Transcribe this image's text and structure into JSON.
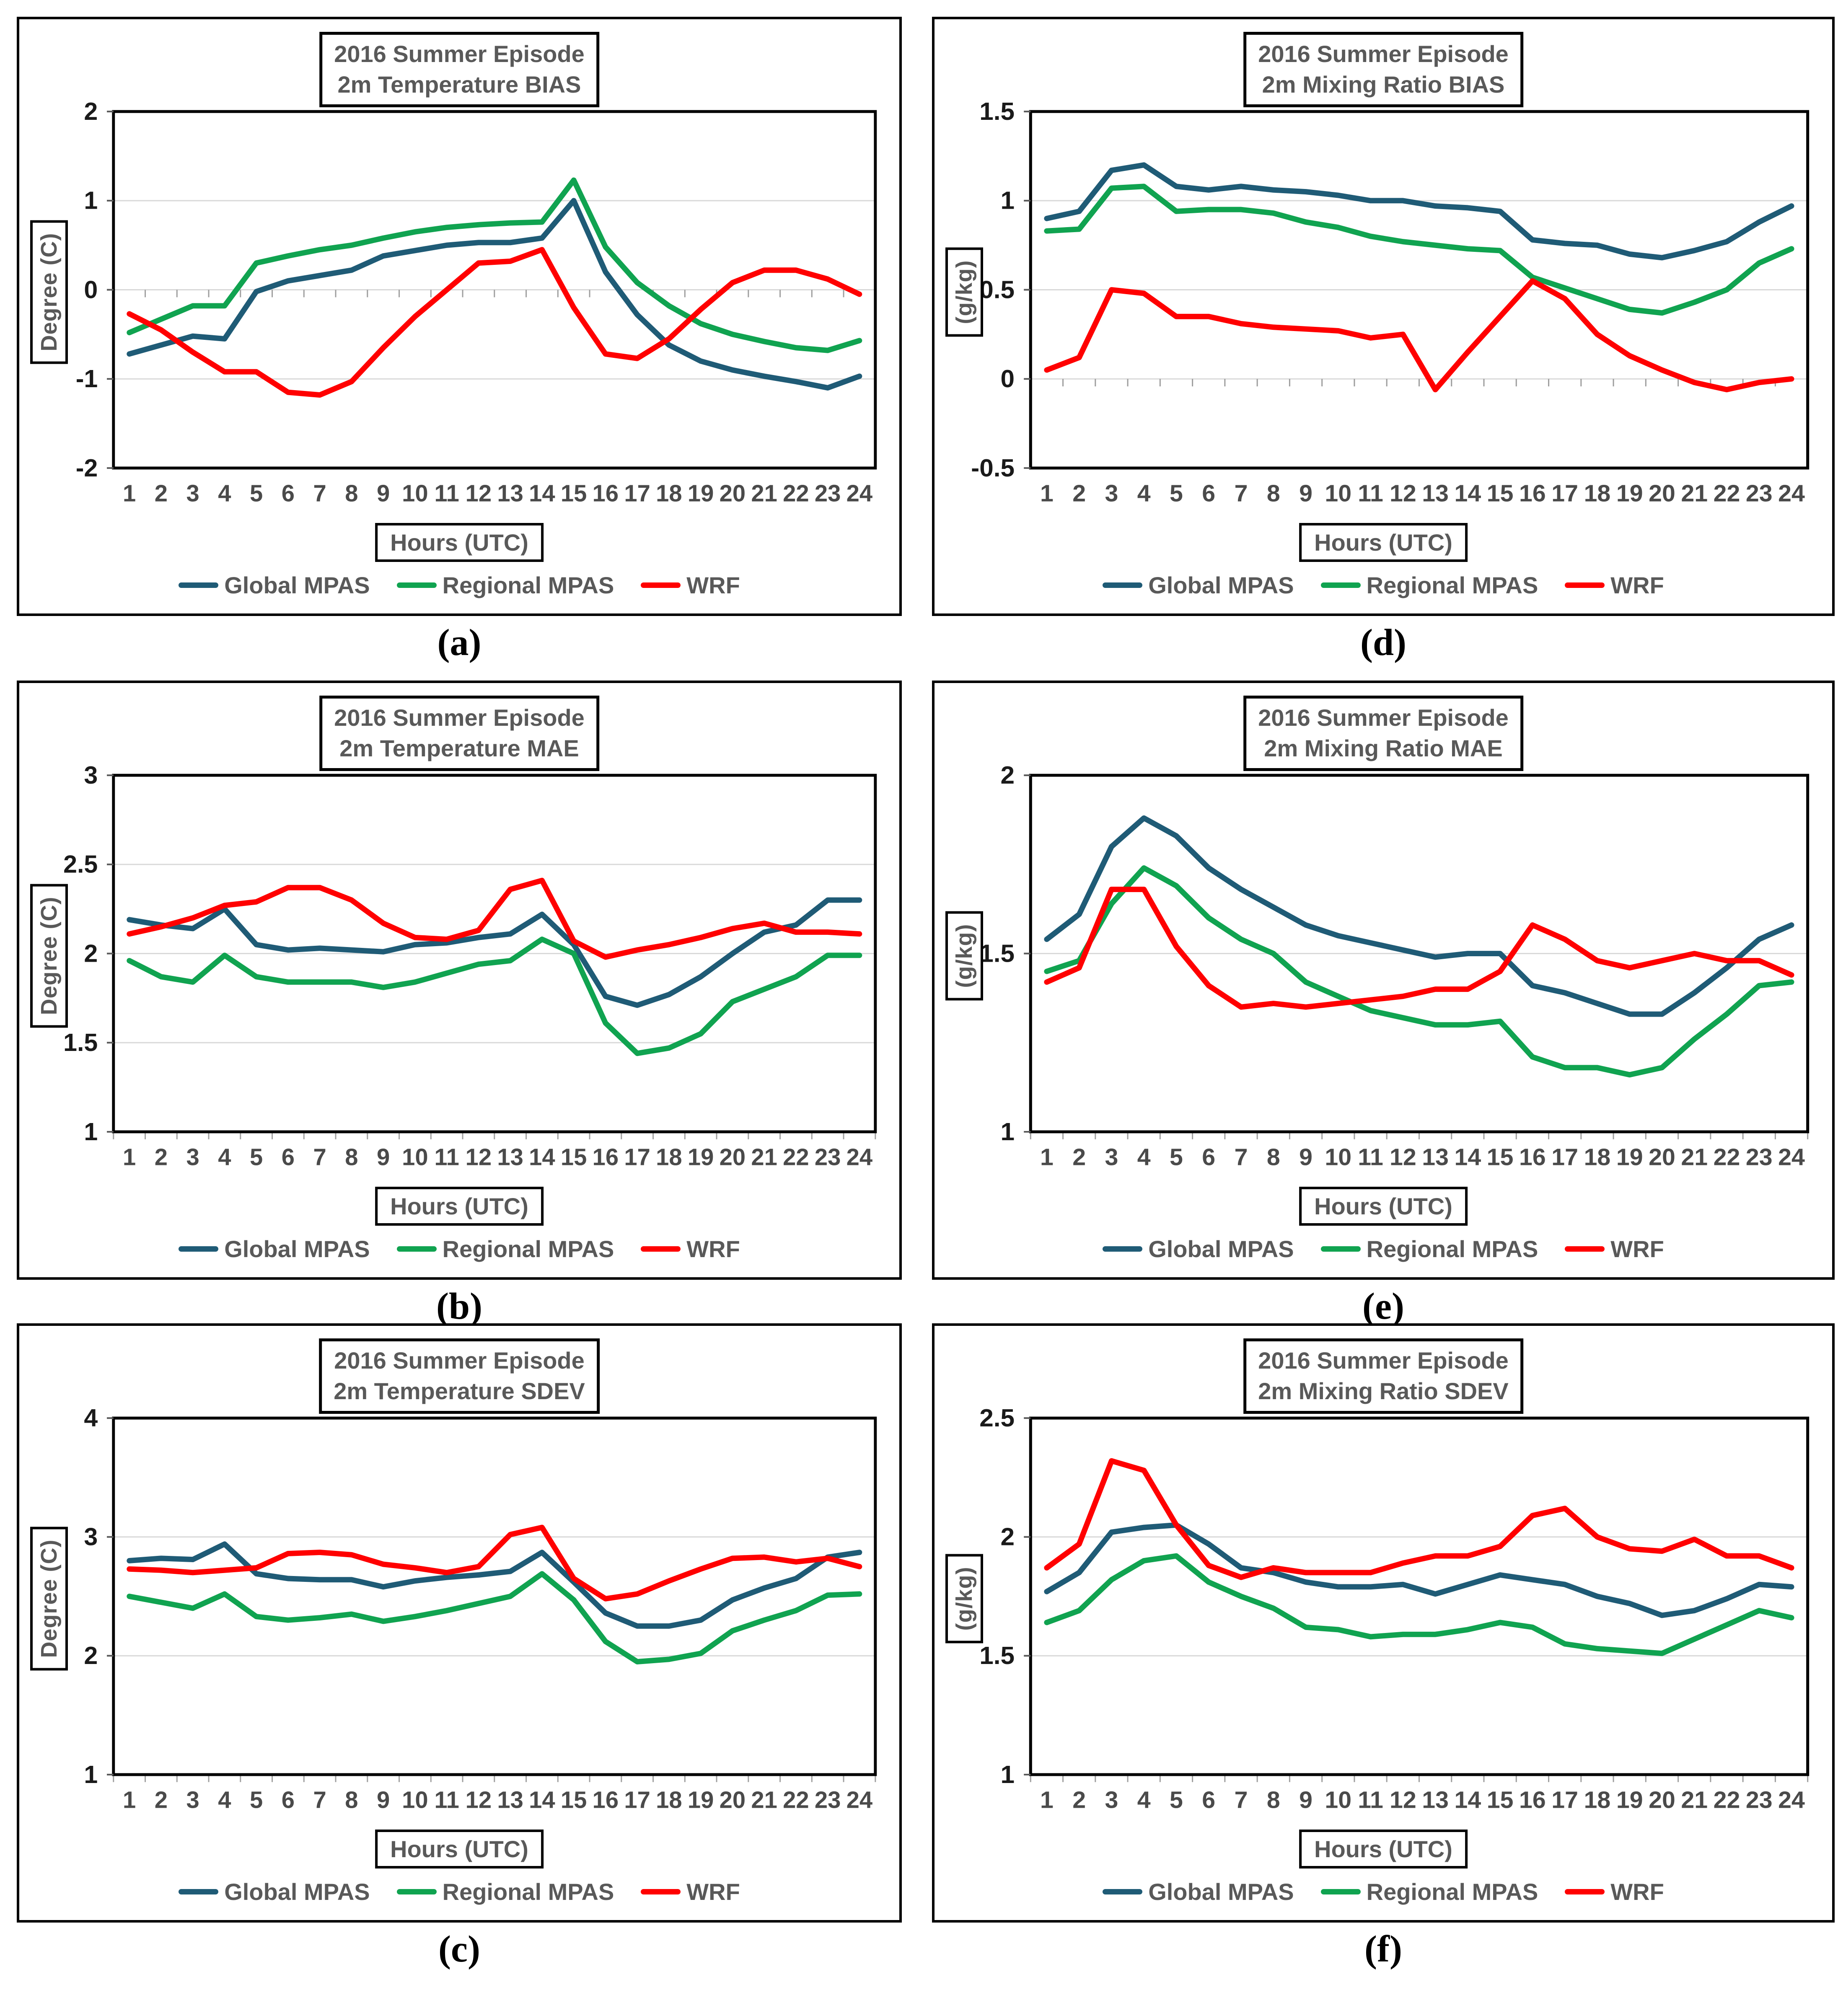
{
  "shared": {
    "x_label": "Hours (UTC)",
    "legend": [
      {
        "key": "global",
        "label": "Global MPAS"
      },
      {
        "key": "regional",
        "label": "Regional MPAS"
      },
      {
        "key": "wrf",
        "label": "WRF"
      }
    ],
    "colors": {
      "global": "#1F5B76",
      "regional": "#10A350",
      "wrf": "#FF0000",
      "grid": "#D9D9D9",
      "frame": "#000000",
      "title_text": "#595959",
      "x_tick_text": "#4A4A4A",
      "y_tick_text": "#1A1A1A"
    }
  },
  "chart_data": [
    {
      "id": "a",
      "panel_label": "(a)",
      "type": "line",
      "title_line1": "2016 Summer Episode",
      "title_line2": "2m Temperature BIAS",
      "ylabel": "Degree (C)",
      "xlabel": "Hours (UTC)",
      "ylim": [
        -2,
        2
      ],
      "x_axis_at": 0,
      "yticks": [
        {
          "v": 2,
          "t": "2"
        },
        {
          "v": 1,
          "t": "1"
        },
        {
          "v": 0,
          "t": "0"
        },
        {
          "v": -1,
          "t": "-1"
        },
        {
          "v": -2,
          "t": "-2"
        }
      ],
      "x": [
        1,
        2,
        3,
        4,
        5,
        6,
        7,
        8,
        9,
        10,
        11,
        12,
        13,
        14,
        15,
        16,
        17,
        18,
        19,
        20,
        21,
        22,
        23,
        24
      ],
      "series": [
        {
          "name": "Global MPAS",
          "key": "global",
          "values": [
            -0.72,
            -0.62,
            -0.52,
            -0.55,
            -0.02,
            0.1,
            0.16,
            0.22,
            0.38,
            0.44,
            0.5,
            0.53,
            0.53,
            0.58,
            1.0,
            0.2,
            -0.28,
            -0.62,
            -0.8,
            -0.9,
            -0.97,
            -1.03,
            -1.1,
            -0.97
          ]
        },
        {
          "name": "Regional MPAS",
          "key": "regional",
          "values": [
            -0.48,
            -0.33,
            -0.18,
            -0.18,
            0.3,
            0.38,
            0.45,
            0.5,
            0.58,
            0.65,
            0.7,
            0.73,
            0.75,
            0.76,
            1.23,
            0.48,
            0.08,
            -0.18,
            -0.38,
            -0.5,
            -0.58,
            -0.65,
            -0.68,
            -0.57
          ]
        },
        {
          "name": "WRF",
          "key": "wrf",
          "values": [
            -0.27,
            -0.45,
            -0.7,
            -0.92,
            -0.92,
            -1.15,
            -1.18,
            -1.03,
            -0.65,
            -0.3,
            0.0,
            0.3,
            0.32,
            0.45,
            -0.2,
            -0.72,
            -0.77,
            -0.55,
            -0.22,
            0.08,
            0.22,
            0.22,
            0.12,
            -0.05
          ]
        }
      ]
    },
    {
      "id": "b",
      "panel_label": "(b)",
      "type": "line",
      "title_line1": "2016 Summer Episode",
      "title_line2": "2m Temperature MAE",
      "ylabel": "Degree (C)",
      "xlabel": "Hours (UTC)",
      "ylim": [
        1,
        3
      ],
      "x_axis_at": 1,
      "yticks": [
        {
          "v": 3,
          "t": "3"
        },
        {
          "v": 2.5,
          "t": "2.5"
        },
        {
          "v": 2,
          "t": "2"
        },
        {
          "v": 1.5,
          "t": "1.5"
        },
        {
          "v": 1,
          "t": "1"
        }
      ],
      "x": [
        1,
        2,
        3,
        4,
        5,
        6,
        7,
        8,
        9,
        10,
        11,
        12,
        13,
        14,
        15,
        16,
        17,
        18,
        19,
        20,
        21,
        22,
        23,
        24
      ],
      "series": [
        {
          "name": "Global MPAS",
          "key": "global",
          "values": [
            2.19,
            2.16,
            2.14,
            2.25,
            2.05,
            2.02,
            2.03,
            2.02,
            2.01,
            2.05,
            2.06,
            2.09,
            2.11,
            2.22,
            2.05,
            1.76,
            1.71,
            1.77,
            1.87,
            2.0,
            2.12,
            2.16,
            2.3,
            2.3
          ]
        },
        {
          "name": "Regional MPAS",
          "key": "regional",
          "values": [
            1.96,
            1.87,
            1.84,
            1.99,
            1.87,
            1.84,
            1.84,
            1.84,
            1.81,
            1.84,
            1.89,
            1.94,
            1.96,
            2.08,
            2.0,
            1.61,
            1.44,
            1.47,
            1.55,
            1.73,
            1.8,
            1.87,
            1.99,
            1.99
          ]
        },
        {
          "name": "WRF",
          "key": "wrf",
          "values": [
            2.11,
            2.15,
            2.2,
            2.27,
            2.29,
            2.37,
            2.37,
            2.3,
            2.17,
            2.09,
            2.08,
            2.13,
            2.36,
            2.41,
            2.07,
            1.98,
            2.02,
            2.05,
            2.09,
            2.14,
            2.17,
            2.12,
            2.12,
            2.11
          ]
        }
      ]
    },
    {
      "id": "c",
      "panel_label": "(c)",
      "type": "line",
      "title_line1": "2016 Summer Episode",
      "title_line2": "2m Temperature SDEV",
      "ylabel": "Degree (C)",
      "xlabel": "Hours (UTC)",
      "ylim": [
        1,
        4
      ],
      "x_axis_at": 1,
      "yticks": [
        {
          "v": 4,
          "t": "4"
        },
        {
          "v": 3,
          "t": "3"
        },
        {
          "v": 2,
          "t": "2"
        },
        {
          "v": 1,
          "t": "1"
        }
      ],
      "x": [
        1,
        2,
        3,
        4,
        5,
        6,
        7,
        8,
        9,
        10,
        11,
        12,
        13,
        14,
        15,
        16,
        17,
        18,
        19,
        20,
        21,
        22,
        23,
        24
      ],
      "series": [
        {
          "name": "Global MPAS",
          "key": "global",
          "values": [
            2.8,
            2.82,
            2.81,
            2.94,
            2.69,
            2.65,
            2.64,
            2.64,
            2.58,
            2.63,
            2.66,
            2.68,
            2.71,
            2.87,
            2.62,
            2.36,
            2.25,
            2.25,
            2.3,
            2.47,
            2.57,
            2.65,
            2.83,
            2.87
          ]
        },
        {
          "name": "Regional MPAS",
          "key": "regional",
          "values": [
            2.5,
            2.45,
            2.4,
            2.52,
            2.33,
            2.3,
            2.32,
            2.35,
            2.29,
            2.33,
            2.38,
            2.44,
            2.5,
            2.69,
            2.47,
            2.12,
            1.95,
            1.97,
            2.02,
            2.21,
            2.3,
            2.38,
            2.51,
            2.52
          ]
        },
        {
          "name": "WRF",
          "key": "wrf",
          "values": [
            2.73,
            2.72,
            2.7,
            2.72,
            2.74,
            2.86,
            2.87,
            2.85,
            2.77,
            2.74,
            2.7,
            2.75,
            3.02,
            3.08,
            2.65,
            2.48,
            2.52,
            2.63,
            2.73,
            2.82,
            2.83,
            2.79,
            2.82,
            2.75
          ]
        }
      ]
    },
    {
      "id": "d",
      "panel_label": "(d)",
      "type": "line",
      "title_line1": "2016 Summer Episode",
      "title_line2": "2m Mixing Ratio BIAS",
      "ylabel": "(g/kg)",
      "xlabel": "Hours (UTC)",
      "ylim": [
        -0.5,
        1.5
      ],
      "x_axis_at": 0,
      "yticks": [
        {
          "v": 1.5,
          "t": "1.5"
        },
        {
          "v": 1,
          "t": "1"
        },
        {
          "v": 0.5,
          "t": "0.5"
        },
        {
          "v": 0,
          "t": "0"
        },
        {
          "v": -0.5,
          "t": "-0.5"
        }
      ],
      "x": [
        1,
        2,
        3,
        4,
        5,
        6,
        7,
        8,
        9,
        10,
        11,
        12,
        13,
        14,
        15,
        16,
        17,
        18,
        19,
        20,
        21,
        22,
        23,
        24
      ],
      "series": [
        {
          "name": "Global MPAS",
          "key": "global",
          "values": [
            0.9,
            0.94,
            1.17,
            1.2,
            1.08,
            1.06,
            1.08,
            1.06,
            1.05,
            1.03,
            1.0,
            1.0,
            0.97,
            0.96,
            0.94,
            0.78,
            0.76,
            0.75,
            0.7,
            0.68,
            0.72,
            0.77,
            0.88,
            0.97
          ]
        },
        {
          "name": "Regional MPAS",
          "key": "regional",
          "values": [
            0.83,
            0.84,
            1.07,
            1.08,
            0.94,
            0.95,
            0.95,
            0.93,
            0.88,
            0.85,
            0.8,
            0.77,
            0.75,
            0.73,
            0.72,
            0.57,
            0.51,
            0.45,
            0.39,
            0.37,
            0.43,
            0.5,
            0.65,
            0.73
          ]
        },
        {
          "name": "WRF",
          "key": "wrf",
          "values": [
            0.05,
            0.12,
            0.5,
            0.48,
            0.35,
            0.35,
            0.31,
            0.29,
            0.28,
            0.27,
            0.23,
            0.25,
            -0.06,
            0.15,
            0.35,
            0.55,
            0.45,
            0.25,
            0.13,
            0.05,
            -0.02,
            -0.06,
            -0.02,
            0.0
          ]
        }
      ]
    },
    {
      "id": "e",
      "panel_label": "(e)",
      "type": "line",
      "title_line1": "2016 Summer Episode",
      "title_line2": "2m Mixing Ratio MAE",
      "ylabel": "(g/kg)",
      "xlabel": "Hours (UTC)",
      "ylim": [
        1,
        2
      ],
      "x_axis_at": 1,
      "yticks": [
        {
          "v": 2,
          "t": "2"
        },
        {
          "v": 1.5,
          "t": "1.5"
        },
        {
          "v": 1,
          "t": "1"
        }
      ],
      "x": [
        1,
        2,
        3,
        4,
        5,
        6,
        7,
        8,
        9,
        10,
        11,
        12,
        13,
        14,
        15,
        16,
        17,
        18,
        19,
        20,
        21,
        22,
        23,
        24
      ],
      "series": [
        {
          "name": "Global MPAS",
          "key": "global",
          "values": [
            1.54,
            1.61,
            1.8,
            1.88,
            1.83,
            1.74,
            1.68,
            1.63,
            1.58,
            1.55,
            1.53,
            1.51,
            1.49,
            1.5,
            1.5,
            1.41,
            1.39,
            1.36,
            1.33,
            1.33,
            1.39,
            1.46,
            1.54,
            1.58
          ]
        },
        {
          "name": "Regional MPAS",
          "key": "regional",
          "values": [
            1.45,
            1.48,
            1.64,
            1.74,
            1.69,
            1.6,
            1.54,
            1.5,
            1.42,
            1.38,
            1.34,
            1.32,
            1.3,
            1.3,
            1.31,
            1.21,
            1.18,
            1.18,
            1.16,
            1.18,
            1.26,
            1.33,
            1.41,
            1.42
          ]
        },
        {
          "name": "WRF",
          "key": "wrf",
          "values": [
            1.42,
            1.46,
            1.68,
            1.68,
            1.52,
            1.41,
            1.35,
            1.36,
            1.35,
            1.36,
            1.37,
            1.38,
            1.4,
            1.4,
            1.45,
            1.58,
            1.54,
            1.48,
            1.46,
            1.48,
            1.5,
            1.48,
            1.48,
            1.44
          ]
        }
      ]
    },
    {
      "id": "f",
      "panel_label": "(f)",
      "type": "line",
      "title_line1": "2016 Summer Episode",
      "title_line2": "2m Mixing Ratio SDEV",
      "ylabel": "(g/kg)",
      "xlabel": "Hours (UTC)",
      "ylim": [
        1,
        2.5
      ],
      "x_axis_at": 1,
      "yticks": [
        {
          "v": 2.5,
          "t": "2.5"
        },
        {
          "v": 2,
          "t": "2"
        },
        {
          "v": 1.5,
          "t": "1.5"
        },
        {
          "v": 1,
          "t": "1"
        }
      ],
      "x": [
        1,
        2,
        3,
        4,
        5,
        6,
        7,
        8,
        9,
        10,
        11,
        12,
        13,
        14,
        15,
        16,
        17,
        18,
        19,
        20,
        21,
        22,
        23,
        24
      ],
      "series": [
        {
          "name": "Global MPAS",
          "key": "global",
          "values": [
            1.77,
            1.85,
            2.02,
            2.04,
            2.05,
            1.97,
            1.87,
            1.85,
            1.81,
            1.79,
            1.79,
            1.8,
            1.76,
            1.8,
            1.84,
            1.82,
            1.8,
            1.75,
            1.72,
            1.67,
            1.69,
            1.74,
            1.8,
            1.79
          ]
        },
        {
          "name": "Regional MPAS",
          "key": "regional",
          "values": [
            1.64,
            1.69,
            1.82,
            1.9,
            1.92,
            1.81,
            1.75,
            1.7,
            1.62,
            1.61,
            1.58,
            1.59,
            1.59,
            1.61,
            1.64,
            1.62,
            1.55,
            1.53,
            1.52,
            1.51,
            1.57,
            1.63,
            1.69,
            1.66
          ]
        },
        {
          "name": "WRF",
          "key": "wrf",
          "values": [
            1.87,
            1.97,
            2.32,
            2.28,
            2.05,
            1.88,
            1.83,
            1.87,
            1.85,
            1.85,
            1.85,
            1.89,
            1.92,
            1.92,
            1.96,
            2.09,
            2.12,
            2.0,
            1.95,
            1.94,
            1.99,
            1.92,
            1.92,
            1.87
          ]
        }
      ]
    }
  ]
}
